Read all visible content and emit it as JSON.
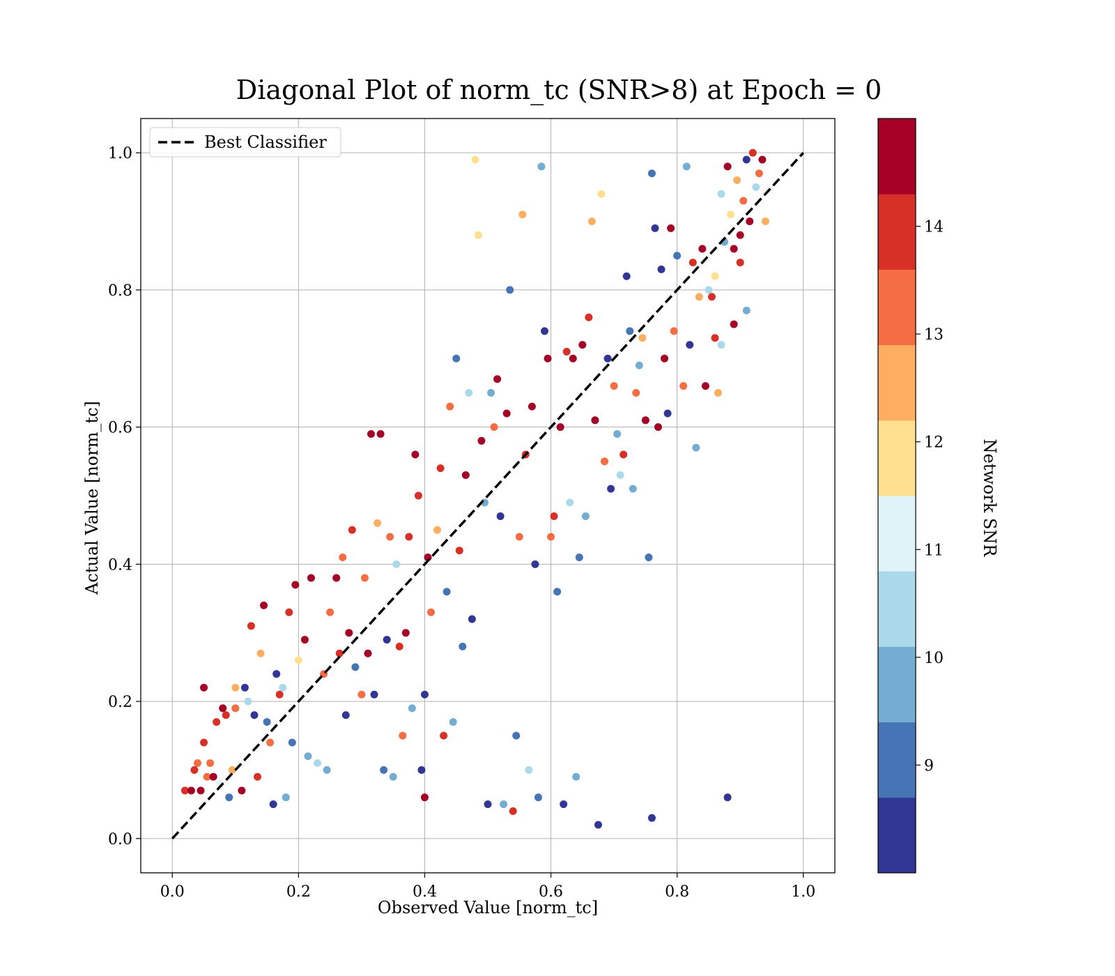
{
  "chart_data": {
    "type": "scatter",
    "title": "Diagonal Plot of norm_tc (SNR>8) at Epoch = 0",
    "xlabel": "Observed Value [norm_tc]",
    "ylabel": "Actual Value [norm_tc]",
    "xlim": [
      -0.05,
      1.05
    ],
    "ylim": [
      -0.05,
      1.05
    ],
    "xticks": [
      "0.0",
      "0.2",
      "0.4",
      "0.6",
      "0.8",
      "1.0"
    ],
    "yticks": [
      "0.0",
      "0.2",
      "0.4",
      "0.6",
      "0.8",
      "1.0"
    ],
    "grid": true,
    "legend": {
      "placement": "upper-left",
      "entries": [
        "Best Classifier"
      ]
    },
    "reference_line": {
      "name": "Best Classifier",
      "x": [
        0,
        1
      ],
      "y": [
        0,
        1
      ],
      "style": "dashed",
      "color": "#000000"
    },
    "colorbar": {
      "label": "Network SNR",
      "range": [
        8,
        15
      ],
      "ticks": [
        "9",
        "10",
        "11",
        "12",
        "13",
        "14"
      ],
      "colors": [
        "#313695",
        "#4575b4",
        "#74add1",
        "#abd9e9",
        "#e0f3f8",
        "#fee090",
        "#fdae61",
        "#f46d43",
        "#d73027",
        "#a50026"
      ]
    },
    "points": [
      [
        0.02,
        0.07,
        14.2
      ],
      [
        0.03,
        0.07,
        14.8
      ],
      [
        0.035,
        0.1,
        13.9
      ],
      [
        0.04,
        0.11,
        13.6
      ],
      [
        0.045,
        0.07,
        14.9
      ],
      [
        0.05,
        0.14,
        14.1
      ],
      [
        0.05,
        0.22,
        14.7
      ],
      [
        0.055,
        0.09,
        13.4
      ],
      [
        0.06,
        0.11,
        13.2
      ],
      [
        0.065,
        0.09,
        14.4
      ],
      [
        0.07,
        0.17,
        14.0
      ],
      [
        0.075,
        0.08,
        11.3
      ],
      [
        0.08,
        0.19,
        14.6
      ],
      [
        0.085,
        0.18,
        13.8
      ],
      [
        0.09,
        0.06,
        9.3
      ],
      [
        0.095,
        0.1,
        12.8
      ],
      [
        0.1,
        0.22,
        12.5
      ],
      [
        0.1,
        0.19,
        13.1
      ],
      [
        0.11,
        0.07,
        14.3
      ],
      [
        0.115,
        0.22,
        8.4
      ],
      [
        0.12,
        0.2,
        10.4
      ],
      [
        0.125,
        0.31,
        14.2
      ],
      [
        0.13,
        0.18,
        8.7
      ],
      [
        0.135,
        0.09,
        13.7
      ],
      [
        0.14,
        0.27,
        12.4
      ],
      [
        0.145,
        0.34,
        14.5
      ],
      [
        0.15,
        0.17,
        9.1
      ],
      [
        0.155,
        0.14,
        13.5
      ],
      [
        0.16,
        0.05,
        8.6
      ],
      [
        0.165,
        0.24,
        8.3
      ],
      [
        0.17,
        0.21,
        13.9
      ],
      [
        0.175,
        0.22,
        10.2
      ],
      [
        0.18,
        0.06,
        9.7
      ],
      [
        0.185,
        0.33,
        14.0
      ],
      [
        0.19,
        0.14,
        8.9
      ],
      [
        0.195,
        0.37,
        14.6
      ],
      [
        0.2,
        0.26,
        11.9
      ],
      [
        0.21,
        0.29,
        14.8
      ],
      [
        0.215,
        0.12,
        10.1
      ],
      [
        0.22,
        0.38,
        14.3
      ],
      [
        0.23,
        0.11,
        10.3
      ],
      [
        0.24,
        0.24,
        13.6
      ],
      [
        0.245,
        0.1,
        9.6
      ],
      [
        0.25,
        0.33,
        13.4
      ],
      [
        0.26,
        0.38,
        14.7
      ],
      [
        0.265,
        0.27,
        14.1
      ],
      [
        0.27,
        0.41,
        13.3
      ],
      [
        0.275,
        0.18,
        8.5
      ],
      [
        0.28,
        0.3,
        14.9
      ],
      [
        0.285,
        0.45,
        13.9
      ],
      [
        0.29,
        0.25,
        8.8
      ],
      [
        0.3,
        0.21,
        13.5
      ],
      [
        0.305,
        0.38,
        13.2
      ],
      [
        0.31,
        0.27,
        14.4
      ],
      [
        0.315,
        0.59,
        14.6
      ],
      [
        0.32,
        0.21,
        8.2
      ],
      [
        0.325,
        0.46,
        12.3
      ],
      [
        0.33,
        0.59,
        14.8
      ],
      [
        0.335,
        0.1,
        9.0
      ],
      [
        0.34,
        0.29,
        8.6
      ],
      [
        0.345,
        0.44,
        13.0
      ],
      [
        0.35,
        0.09,
        9.4
      ],
      [
        0.355,
        0.4,
        10.5
      ],
      [
        0.36,
        0.28,
        14.2
      ],
      [
        0.365,
        0.15,
        13.3
      ],
      [
        0.37,
        0.3,
        14.5
      ],
      [
        0.375,
        0.44,
        13.7
      ],
      [
        0.38,
        0.19,
        10.0
      ],
      [
        0.385,
        0.56,
        14.3
      ],
      [
        0.39,
        0.5,
        14.0
      ],
      [
        0.395,
        0.1,
        8.1
      ],
      [
        0.4,
        0.21,
        8.4
      ],
      [
        0.4,
        0.06,
        14.9
      ],
      [
        0.405,
        0.41,
        14.6
      ],
      [
        0.41,
        0.33,
        13.2
      ],
      [
        0.42,
        0.45,
        12.6
      ],
      [
        0.425,
        0.54,
        14.1
      ],
      [
        0.43,
        0.15,
        14.0
      ],
      [
        0.435,
        0.36,
        9.2
      ],
      [
        0.44,
        0.63,
        13.5
      ],
      [
        0.445,
        0.17,
        9.6
      ],
      [
        0.45,
        0.7,
        9.1
      ],
      [
        0.455,
        0.42,
        13.8
      ],
      [
        0.46,
        0.28,
        9.3
      ],
      [
        0.465,
        0.53,
        14.4
      ],
      [
        0.47,
        0.65,
        10.2
      ],
      [
        0.475,
        0.32,
        8.4
      ],
      [
        0.48,
        0.99,
        12.2
      ],
      [
        0.485,
        0.88,
        12.1
      ],
      [
        0.49,
        0.58,
        14.3
      ],
      [
        0.495,
        0.49,
        10.1
      ],
      [
        0.5,
        0.05,
        8.7
      ],
      [
        0.505,
        0.65,
        9.4
      ],
      [
        0.51,
        0.6,
        13.6
      ],
      [
        0.515,
        0.67,
        14.9
      ],
      [
        0.52,
        0.47,
        8.6
      ],
      [
        0.525,
        0.05,
        10.0
      ],
      [
        0.53,
        0.62,
        14.6
      ],
      [
        0.535,
        0.8,
        9.0
      ],
      [
        0.54,
        0.04,
        14.2
      ],
      [
        0.545,
        0.15,
        9.3
      ],
      [
        0.55,
        0.44,
        13.1
      ],
      [
        0.555,
        0.91,
        12.6
      ],
      [
        0.56,
        0.56,
        13.9
      ],
      [
        0.565,
        0.1,
        10.3
      ],
      [
        0.57,
        0.63,
        14.7
      ],
      [
        0.575,
        0.4,
        8.5
      ],
      [
        0.58,
        0.06,
        9.2
      ],
      [
        0.585,
        0.98,
        9.8
      ],
      [
        0.59,
        0.74,
        8.3
      ],
      [
        0.595,
        0.7,
        14.5
      ],
      [
        0.6,
        0.44,
        13.3
      ],
      [
        0.605,
        0.47,
        14.2
      ],
      [
        0.61,
        0.36,
        9.1
      ],
      [
        0.615,
        0.6,
        14.8
      ],
      [
        0.62,
        0.05,
        8.1
      ],
      [
        0.625,
        0.71,
        14.0
      ],
      [
        0.63,
        0.49,
        10.5
      ],
      [
        0.635,
        0.7,
        14.3
      ],
      [
        0.64,
        0.09,
        10.1
      ],
      [
        0.645,
        0.41,
        9.0
      ],
      [
        0.65,
        0.72,
        14.6
      ],
      [
        0.655,
        0.47,
        9.4
      ],
      [
        0.66,
        0.76,
        13.8
      ],
      [
        0.665,
        0.9,
        12.3
      ],
      [
        0.67,
        0.61,
        14.9
      ],
      [
        0.675,
        0.02,
        8.2
      ],
      [
        0.68,
        0.94,
        12.1
      ],
      [
        0.685,
        0.55,
        13.0
      ],
      [
        0.69,
        0.7,
        8.6
      ],
      [
        0.695,
        0.51,
        8.3
      ],
      [
        0.7,
        0.66,
        13.5
      ],
      [
        0.705,
        0.59,
        9.6
      ],
      [
        0.71,
        0.53,
        10.2
      ],
      [
        0.715,
        0.56,
        14.2
      ],
      [
        0.72,
        0.82,
        8.5
      ],
      [
        0.725,
        0.74,
        9.2
      ],
      [
        0.73,
        0.51,
        10.0
      ],
      [
        0.735,
        0.65,
        13.6
      ],
      [
        0.74,
        0.69,
        9.8
      ],
      [
        0.745,
        0.73,
        12.4
      ],
      [
        0.75,
        0.61,
        14.7
      ],
      [
        0.755,
        0.41,
        9.3
      ],
      [
        0.76,
        0.97,
        9.1
      ],
      [
        0.76,
        0.03,
        8.3
      ],
      [
        0.765,
        0.89,
        8.6
      ],
      [
        0.77,
        0.6,
        14.4
      ],
      [
        0.775,
        0.83,
        8.2
      ],
      [
        0.78,
        0.7,
        14.9
      ],
      [
        0.785,
        0.62,
        8.7
      ],
      [
        0.79,
        0.89,
        14.6
      ],
      [
        0.795,
        0.74,
        13.3
      ],
      [
        0.8,
        0.85,
        8.8
      ],
      [
        0.81,
        0.66,
        13.2
      ],
      [
        0.815,
        0.98,
        9.4
      ],
      [
        0.82,
        0.72,
        8.3
      ],
      [
        0.825,
        0.84,
        14.1
      ],
      [
        0.83,
        0.57,
        10.1
      ],
      [
        0.835,
        0.79,
        12.7
      ],
      [
        0.84,
        0.86,
        14.5
      ],
      [
        0.845,
        0.66,
        14.7
      ],
      [
        0.85,
        0.8,
        10.4
      ],
      [
        0.855,
        0.79,
        14.2
      ],
      [
        0.86,
        0.73,
        14.0
      ],
      [
        0.865,
        0.65,
        12.6
      ],
      [
        0.87,
        0.94,
        10.6
      ],
      [
        0.875,
        0.87,
        9.5
      ],
      [
        0.88,
        0.98,
        14.8
      ],
      [
        0.88,
        0.06,
        8.4
      ],
      [
        0.885,
        0.91,
        12.2
      ],
      [
        0.89,
        0.86,
        14.3
      ],
      [
        0.895,
        0.96,
        12.4
      ],
      [
        0.9,
        0.88,
        14.9
      ],
      [
        0.905,
        0.93,
        13.6
      ],
      [
        0.91,
        0.99,
        8.7
      ],
      [
        0.915,
        0.9,
        14.6
      ],
      [
        0.92,
        1.0,
        14.2
      ],
      [
        0.925,
        0.95,
        10.2
      ],
      [
        0.93,
        0.97,
        13.1
      ],
      [
        0.935,
        0.99,
        14.8
      ],
      [
        0.94,
        0.9,
        12.5
      ],
      [
        0.91,
        0.77,
        9.4
      ],
      [
        0.9,
        0.84,
        13.7
      ],
      [
        0.89,
        0.75,
        14.4
      ],
      [
        0.87,
        0.72,
        10.3
      ],
      [
        0.86,
        0.82,
        12.1
      ]
    ]
  }
}
